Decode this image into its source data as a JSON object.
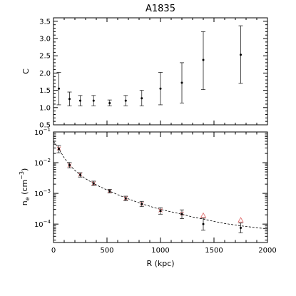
{
  "chart_data": {
    "title": "A1835",
    "panels": [
      {
        "type": "scatter",
        "ylabel": "C",
        "xlim": [
          0,
          2000
        ],
        "ylim": [
          0.5,
          3.6
        ],
        "yticks": [
          "0.5",
          "1.0",
          "1.5",
          "2.0",
          "2.5",
          "3.0",
          "3.5"
        ],
        "series": [
          {
            "style": "points-with-errorbars",
            "points": [
              {
                "x": 50,
                "y": 1.55,
                "lo": 1.08,
                "hi": 2.02
              },
              {
                "x": 150,
                "y": 1.25,
                "lo": 1.05,
                "hi": 1.45
              },
              {
                "x": 250,
                "y": 1.2,
                "lo": 1.05,
                "hi": 1.35
              },
              {
                "x": 375,
                "y": 1.2,
                "lo": 1.05,
                "hi": 1.35
              },
              {
                "x": 525,
                "y": 1.13,
                "lo": 1.05,
                "hi": 1.22
              },
              {
                "x": 675,
                "y": 1.2,
                "lo": 1.05,
                "hi": 1.35
              },
              {
                "x": 825,
                "y": 1.27,
                "lo": 1.05,
                "hi": 1.5
              },
              {
                "x": 1000,
                "y": 1.55,
                "lo": 1.08,
                "hi": 2.02
              },
              {
                "x": 1200,
                "y": 1.72,
                "lo": 1.13,
                "hi": 2.3
              },
              {
                "x": 1400,
                "y": 2.38,
                "lo": 1.52,
                "hi": 3.2
              },
              {
                "x": 1750,
                "y": 2.53,
                "lo": 1.7,
                "hi": 3.37
              }
            ]
          }
        ]
      },
      {
        "type": "scatter",
        "ylabel": "n_e (cm^-3)",
        "xlabel": "R (kpc)",
        "xlim": [
          0,
          2000
        ],
        "xticks": [
          "0",
          "500",
          "1000",
          "1500",
          "2000"
        ],
        "ylog": true,
        "ylim_exp": [
          -4.6,
          -1
        ],
        "yticks_exp": [
          -1,
          -2,
          -3,
          -4
        ],
        "series": [
          {
            "style": "points-with-errorbars",
            "points": [
              {
                "x": 50,
                "y": 0.028,
                "lo": 0.021,
                "hi": 0.036
              },
              {
                "x": 150,
                "y": 0.0083,
                "lo": 0.0068,
                "hi": 0.0101
              },
              {
                "x": 250,
                "y": 0.004,
                "lo": 0.0034,
                "hi": 0.0047
              },
              {
                "x": 375,
                "y": 0.0021,
                "lo": 0.0018,
                "hi": 0.0025
              },
              {
                "x": 525,
                "y": 0.00118,
                "lo": 0.00103,
                "hi": 0.00135
              },
              {
                "x": 675,
                "y": 0.00068,
                "lo": 0.00057,
                "hi": 0.00081
              },
              {
                "x": 825,
                "y": 0.00045,
                "lo": 0.00037,
                "hi": 0.00055
              },
              {
                "x": 1000,
                "y": 0.00027,
                "lo": 0.00021,
                "hi": 0.00034
              },
              {
                "x": 1200,
                "y": 0.00021,
                "lo": 0.00015,
                "hi": 0.00029
              },
              {
                "x": 1400,
                "y": 0.0001,
                "lo": 6.3e-05,
                "hi": 0.000155
              },
              {
                "x": 1750,
                "y": 7.5e-05,
                "lo": 5.2e-05,
                "hi": 0.000108
              }
            ]
          },
          {
            "style": "red-crosses",
            "points": [
              {
                "x": 50,
                "y": 0.029
              },
              {
                "x": 150,
                "y": 0.0082
              },
              {
                "x": 250,
                "y": 0.0041
              },
              {
                "x": 375,
                "y": 0.0021
              },
              {
                "x": 525,
                "y": 0.00117
              },
              {
                "x": 675,
                "y": 0.00069
              },
              {
                "x": 825,
                "y": 0.00046
              },
              {
                "x": 1000,
                "y": 0.00028
              },
              {
                "x": 1200,
                "y": 0.00022
              }
            ]
          },
          {
            "style": "red-triangles",
            "points": [
              {
                "x": 1400,
                "y": 0.00019
              },
              {
                "x": 1750,
                "y": 0.000135
              }
            ]
          },
          {
            "style": "dashed-line",
            "points": [
              {
                "x": 0,
                "y": 0.05
              },
              {
                "x": 50,
                "y": 0.028
              },
              {
                "x": 100,
                "y": 0.0145
              },
              {
                "x": 150,
                "y": 0.0085
              },
              {
                "x": 200,
                "y": 0.0056
              },
              {
                "x": 250,
                "y": 0.004
              },
              {
                "x": 300,
                "y": 0.003
              },
              {
                "x": 375,
                "y": 0.0021
              },
              {
                "x": 450,
                "y": 0.00155
              },
              {
                "x": 525,
                "y": 0.00118
              },
              {
                "x": 600,
                "y": 0.00091
              },
              {
                "x": 675,
                "y": 0.00071
              },
              {
                "x": 750,
                "y": 0.00057
              },
              {
                "x": 825,
                "y": 0.00046
              },
              {
                "x": 900,
                "y": 0.00038
              },
              {
                "x": 1000,
                "y": 0.0003
              },
              {
                "x": 1100,
                "y": 0.00025
              },
              {
                "x": 1200,
                "y": 0.00021
              },
              {
                "x": 1300,
                "y": 0.00017
              },
              {
                "x": 1400,
                "y": 0.000145
              },
              {
                "x": 1500,
                "y": 0.000122
              },
              {
                "x": 1600,
                "y": 0.000105
              },
              {
                "x": 1750,
                "y": 8.8e-05
              },
              {
                "x": 1900,
                "y": 7.6e-05
              },
              {
                "x": 2000,
                "y": 7e-05
              }
            ]
          }
        ]
      }
    ]
  }
}
